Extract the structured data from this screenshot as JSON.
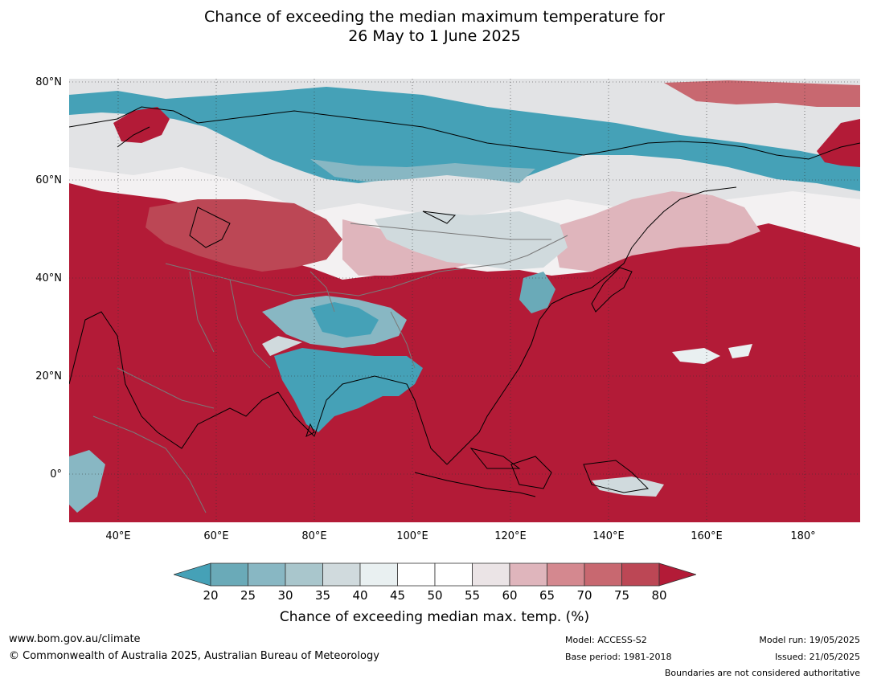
{
  "title_line1": "Chance of exceeding the median maximum temperature for",
  "title_line2": "26 May to 1 June 2025",
  "map": {
    "lat_labels": [
      "80°N",
      "60°N",
      "40°N",
      "20°N",
      "0°"
    ],
    "lon_labels": [
      "40°E",
      "60°E",
      "80°E",
      "100°E",
      "120°E",
      "140°E",
      "160°E",
      "180°"
    ],
    "extent": {
      "lon_min": 30,
      "lon_max": 191,
      "lat_min": -10,
      "lat_max": 80
    }
  },
  "colorbar": {
    "ticks": [
      "20",
      "25",
      "30",
      "35",
      "40",
      "45",
      "50",
      "55",
      "60",
      "65",
      "70",
      "75",
      "80"
    ],
    "colors": [
      "#45a1b7",
      "#6aaab8",
      "#88b7c3",
      "#a9c6cc",
      "#d0dadd",
      "#e9f0f1",
      "#ffffff",
      "#ffffff",
      "#ebe4e6",
      "#dfb5bc",
      "#d4888f",
      "#c86870",
      "#bc4755",
      "#b31b37"
    ],
    "label": "Chance of exceeding median max. temp. (%)"
  },
  "footer": {
    "url": "www.bom.gov.au/climate",
    "copyright": "© Commonwealth of Australia 2025, Australian Bureau of Meteorology",
    "model": "Model: ACCESS-S2",
    "base_period": "Base period: 1981-2018",
    "model_run": "Model run: 19/05/2025",
    "issued": "Issued: 21/05/2025",
    "boundaries": "Boundaries are not considered authoritative"
  }
}
